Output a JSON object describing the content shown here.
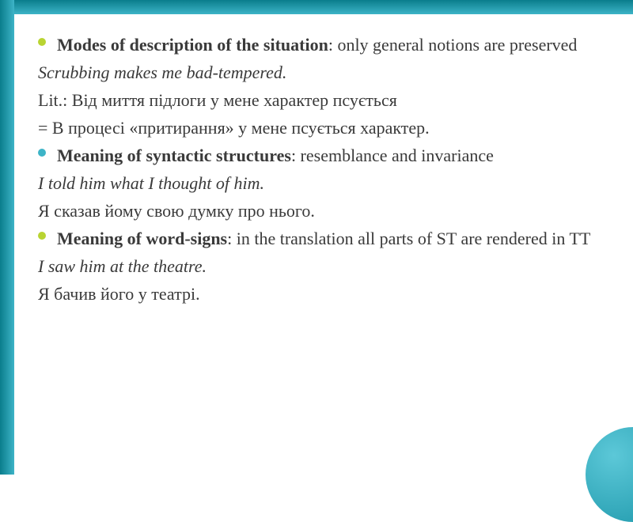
{
  "colors": {
    "bullet1": "#b9d432",
    "bullet2": "#3db4c7",
    "bullet3": "#b9d432",
    "text": "#3a3a3a"
  },
  "items": [
    {
      "type": "bullet",
      "bulletColorKey": "bullet1",
      "justified": true,
      "bold": "Modes of description of the situation",
      "rest": ": only general notions are preserved"
    },
    {
      "type": "italic",
      "text": "Scrubbing makes me bad-tempered."
    },
    {
      "type": "plain",
      "text": "Lit.: Від миття підлоги у мене характер псується"
    },
    {
      "type": "plain",
      "text": "= В процесі «притирання» у мене псується характер."
    },
    {
      "type": "bullet",
      "bulletColorKey": "bullet2",
      "justified": false,
      "bold": "Meaning of syntactic structures",
      "rest": ": resemblance and invariance"
    },
    {
      "type": "italic",
      "text": "I told him what I thought of him."
    },
    {
      "type": "plain",
      "text": "Я сказав йому свою думку про нього."
    },
    {
      "type": "bullet",
      "bulletColorKey": "bullet3",
      "justified": false,
      "bold": "Meaning of word-signs",
      "rest": ": in the translation all parts of ST are rendered in TT"
    },
    {
      "type": "italic",
      "text": "I saw him at the theatre."
    },
    {
      "type": "plain",
      "text": "Я бачив його у театрі."
    }
  ]
}
